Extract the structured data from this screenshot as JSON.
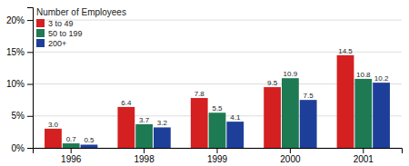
{
  "chart_data": {
    "type": "bar",
    "categories": [
      "1996",
      "1998",
      "1999",
      "2000",
      "2001"
    ],
    "series": [
      {
        "name": "3 to 49",
        "color": "#d42020",
        "values": [
          3.0,
          6.4,
          7.8,
          9.5,
          14.5
        ],
        "value_labels": [
          "3.0",
          "6.4",
          "7.8",
          "9.5",
          "14.5"
        ]
      },
      {
        "name": "50 to 199",
        "color": "#1e7a52",
        "values": [
          0.7,
          3.7,
          5.5,
          10.9,
          10.8
        ],
        "value_labels": [
          "0.7",
          "3.7",
          "5.5",
          "10.9",
          "10.8"
        ]
      },
      {
        "name": "200+",
        "color": "#1e3f99",
        "values": [
          0.5,
          3.2,
          4.1,
          7.5,
          10.2
        ],
        "value_labels": [
          "0.5",
          "3.2",
          "4.1",
          "7.5",
          "10.2"
        ]
      }
    ],
    "legend_title": "Number of Employees",
    "legend": "upper left",
    "ylim": [
      0,
      22
    ],
    "yticks": [
      {
        "value": 0,
        "label": "0%"
      },
      {
        "value": 5,
        "label": "5%"
      },
      {
        "value": 10,
        "label": "10%"
      },
      {
        "value": 15,
        "label": "15%"
      },
      {
        "value": 20,
        "label": "20%"
      }
    ],
    "grid": true,
    "data_labels": true
  }
}
